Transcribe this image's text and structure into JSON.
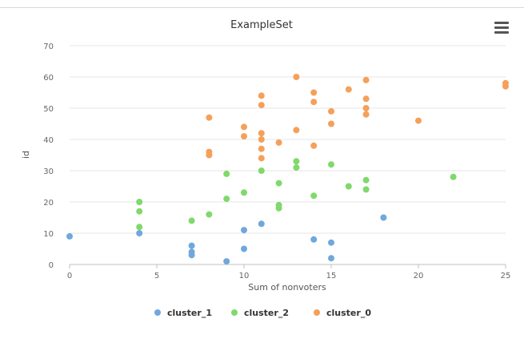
{
  "chart_data": {
    "type": "scatter",
    "title": "ExampleSet",
    "xlabel": "Sum of nonvoters",
    "ylabel": "id",
    "xlim": [
      0,
      25
    ],
    "ylim": [
      0,
      70
    ],
    "xticks": [
      "0",
      "5",
      "10",
      "15",
      "20",
      "25"
    ],
    "yticks": [
      "0",
      "10",
      "20",
      "30",
      "40",
      "50",
      "60",
      "70"
    ],
    "grid": "horizontal",
    "legend_position": "bottom",
    "series": [
      {
        "name": "cluster_1",
        "color": "#6fa8dc",
        "points": [
          [
            0,
            9
          ],
          [
            4,
            10
          ],
          [
            7,
            6
          ],
          [
            7,
            4
          ],
          [
            7,
            3
          ],
          [
            9,
            1
          ],
          [
            10,
            5
          ],
          [
            10,
            11
          ],
          [
            11,
            13
          ],
          [
            14,
            8
          ],
          [
            15,
            7
          ],
          [
            15,
            2
          ],
          [
            18,
            15
          ]
        ]
      },
      {
        "name": "cluster_2",
        "color": "#7fd96b",
        "points": [
          [
            4,
            20
          ],
          [
            4,
            17
          ],
          [
            4,
            12
          ],
          [
            7,
            14
          ],
          [
            8,
            16
          ],
          [
            9,
            29
          ],
          [
            9,
            21
          ],
          [
            10,
            23
          ],
          [
            11,
            30
          ],
          [
            12,
            26
          ],
          [
            12,
            19
          ],
          [
            12,
            18
          ],
          [
            13,
            33
          ],
          [
            13,
            31
          ],
          [
            14,
            22
          ],
          [
            15,
            32
          ],
          [
            16,
            25
          ],
          [
            17,
            27
          ],
          [
            17,
            24
          ],
          [
            22,
            28
          ]
        ]
      },
      {
        "name": "cluster_0",
        "color": "#f5a05a",
        "points": [
          [
            8,
            47
          ],
          [
            8,
            36
          ],
          [
            8,
            35
          ],
          [
            10,
            44
          ],
          [
            10,
            41
          ],
          [
            11,
            54
          ],
          [
            11,
            51
          ],
          [
            11,
            42
          ],
          [
            11,
            40
          ],
          [
            11,
            37
          ],
          [
            11,
            34
          ],
          [
            12,
            39
          ],
          [
            13,
            60
          ],
          [
            13,
            43
          ],
          [
            14,
            55
          ],
          [
            14,
            52
          ],
          [
            14,
            38
          ],
          [
            15,
            49
          ],
          [
            15,
            45
          ],
          [
            16,
            56
          ],
          [
            17,
            59
          ],
          [
            17,
            53
          ],
          [
            17,
            50
          ],
          [
            17,
            48
          ],
          [
            20,
            46
          ],
          [
            25,
            58
          ],
          [
            25,
            57
          ]
        ]
      }
    ]
  },
  "toolbar": {
    "menu_icon": "hamburger-menu-icon"
  }
}
